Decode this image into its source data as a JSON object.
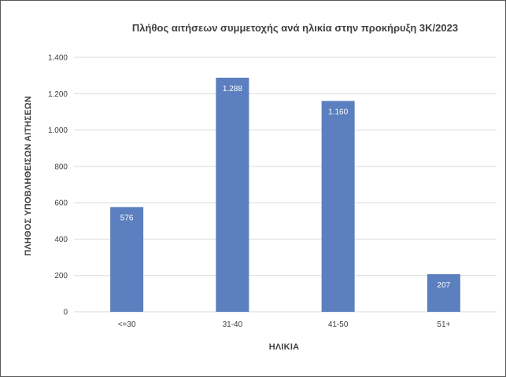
{
  "chart_data": {
    "type": "bar",
    "title": "Πλήθος αιτήσεων συμμετοχής ανά ηλικία στην προκήρυξη 3Κ/2023",
    "xlabel": "ΗΛΙΚΙΑ",
    "ylabel": "ΠΛΗΘΟΣ ΥΠΟΒΛΗΘΕΙΣΩΝ ΑΙΤΗΣΕΩΝ",
    "categories": [
      "<=30",
      "31-40",
      "41-50",
      "51+"
    ],
    "values": [
      576,
      1288,
      1160,
      207
    ],
    "value_labels": [
      "576",
      "1.288",
      "1.160",
      "207"
    ],
    "ylim": [
      0,
      1400
    ],
    "yticks": [
      0,
      200,
      400,
      600,
      800,
      1000,
      1200,
      1400
    ],
    "ytick_labels": [
      "0",
      "200",
      "400",
      "600",
      "800",
      "1.000",
      "1.200",
      "1.400"
    ],
    "grid": true,
    "legend": "none",
    "bar_color": "#5b7fbf"
  }
}
